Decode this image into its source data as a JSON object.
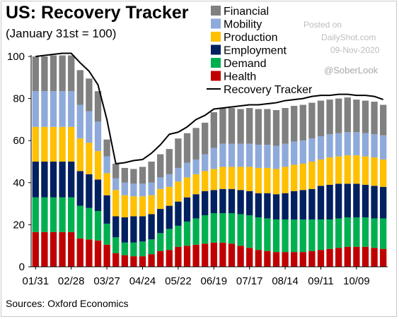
{
  "header": {
    "title": "US: Recovery Tracker",
    "subtitle": "(January 31st = 100)"
  },
  "footer": {
    "source": "Sources: Oxford Economics"
  },
  "watermark": {
    "posted": "Posted on",
    "site": "DailyShot.com",
    "date": "09-Nov-2020",
    "handle": "@SoberLook"
  },
  "colors": {
    "Health": "#c00000",
    "Demand": "#00b050",
    "Employment": "#002060",
    "Production": "#ffc000",
    "Mobility": "#8eaadb",
    "Financial": "#808080",
    "Recovery Tracker": "#000000"
  },
  "chart_data": {
    "type": "bar",
    "stacked": true,
    "title": "US: Recovery Tracker",
    "subtitle": "(January 31st = 100)",
    "xlabel": "",
    "ylabel": "",
    "ylim": [
      0,
      100
    ],
    "yticks": [
      0,
      20,
      40,
      60,
      80,
      100
    ],
    "xtick_labels": [
      "01/31",
      "02/28",
      "03/27",
      "04/24",
      "05/22",
      "06/19",
      "07/17",
      "08/14",
      "09/11",
      "10/09"
    ],
    "xtick_indices": [
      0,
      4,
      8,
      12,
      16,
      20,
      24,
      28,
      32,
      36
    ],
    "legend_position": "top-right",
    "categories": [
      "01/31",
      "02/07",
      "02/14",
      "02/21",
      "02/28",
      "03/06",
      "03/13",
      "03/20",
      "03/27",
      "04/03",
      "04/10",
      "04/17",
      "04/24",
      "05/01",
      "05/08",
      "05/15",
      "05/22",
      "05/29",
      "06/05",
      "06/12",
      "06/19",
      "06/26",
      "07/03",
      "07/10",
      "07/17",
      "07/24",
      "07/31",
      "08/07",
      "08/14",
      "08/21",
      "08/28",
      "09/04",
      "09/11",
      "09/18",
      "09/25",
      "10/02",
      "10/09",
      "10/16",
      "10/23",
      "10/30"
    ],
    "series": [
      {
        "name": "Health",
        "values": [
          16.5,
          16.5,
          16.5,
          16.5,
          16.5,
          13.5,
          13,
          12.5,
          10.5,
          6.5,
          5.5,
          5,
          5,
          6,
          7.5,
          8,
          9.5,
          10,
          10.5,
          11,
          11.5,
          11.5,
          11,
          10,
          9,
          8,
          7.5,
          7,
          7,
          7,
          7,
          7.5,
          8,
          8.5,
          9,
          9.5,
          9.5,
          9.5,
          9,
          8.5
        ]
      },
      {
        "name": "Demand",
        "values": [
          16.5,
          16.5,
          16.5,
          16.5,
          16.5,
          15.5,
          15,
          14,
          10,
          7.5,
          6,
          6.5,
          7,
          7,
          8.5,
          10,
          10,
          11.5,
          12.5,
          13.5,
          14,
          14,
          14.5,
          15,
          15.5,
          15.5,
          15.5,
          15.5,
          15.5,
          15.5,
          15.5,
          15,
          14.5,
          14,
          14,
          14,
          14,
          14,
          14,
          14.5
        ]
      },
      {
        "name": "Employment",
        "values": [
          17,
          17,
          17,
          17,
          17,
          16.5,
          16,
          15,
          13.5,
          10,
          12,
          12.5,
          12,
          12,
          11.5,
          11,
          11.5,
          11.5,
          11.5,
          11.5,
          11,
          11.5,
          11.5,
          11.5,
          11.5,
          11.5,
          12,
          12,
          12.5,
          13.5,
          14,
          14.5,
          16,
          16.5,
          16.5,
          16,
          16,
          15.5,
          15.5,
          15
        ]
      },
      {
        "name": "Production",
        "values": [
          16.5,
          16.5,
          16.5,
          16.5,
          16.5,
          15.5,
          15,
          13.5,
          10.5,
          12.5,
          10.5,
          9.5,
          9.5,
          9,
          9.5,
          9,
          9.5,
          9.5,
          9.5,
          9.5,
          10,
          10.5,
          10.5,
          11,
          11.5,
          12,
          12,
          12,
          12.5,
          12.5,
          12.5,
          13,
          12.5,
          13,
          13,
          13.5,
          13.5,
          13.5,
          13.5,
          13
        ]
      },
      {
        "name": "Mobility",
        "values": [
          17,
          17,
          17,
          17,
          17,
          16,
          15,
          14,
          8,
          5.5,
          6,
          6,
          6,
          6,
          5.5,
          6,
          6.5,
          7,
          7,
          8,
          10,
          11,
          11,
          11,
          11,
          11,
          11,
          11,
          11,
          11,
          11,
          11,
          11,
          11,
          11,
          11,
          11,
          11,
          11,
          11.5
        ]
      },
      {
        "name": "Financial",
        "values": [
          16.5,
          16.5,
          17,
          17,
          17,
          16.5,
          15.5,
          14.5,
          8,
          7,
          7,
          7,
          8,
          10,
          11,
          12,
          14,
          14,
          15,
          15,
          17,
          17,
          17,
          16.5,
          17,
          17,
          17,
          17,
          17,
          17,
          17,
          17,
          17,
          16.5,
          16.5,
          16.5,
          15.5,
          15.5,
          15.5,
          14.5
        ]
      }
    ],
    "line": {
      "name": "Recovery Tracker",
      "values": [
        100,
        100.5,
        101,
        101.5,
        101.5,
        97,
        93,
        86.5,
        70,
        49,
        49.5,
        50.5,
        51,
        54,
        58,
        63,
        64,
        66.5,
        70,
        72,
        75,
        75.5,
        76,
        76.5,
        77,
        77,
        77.5,
        78,
        79,
        79.5,
        80,
        81,
        81.5,
        81.5,
        82,
        82,
        81.5,
        81.5,
        81,
        79.5
      ]
    }
  }
}
